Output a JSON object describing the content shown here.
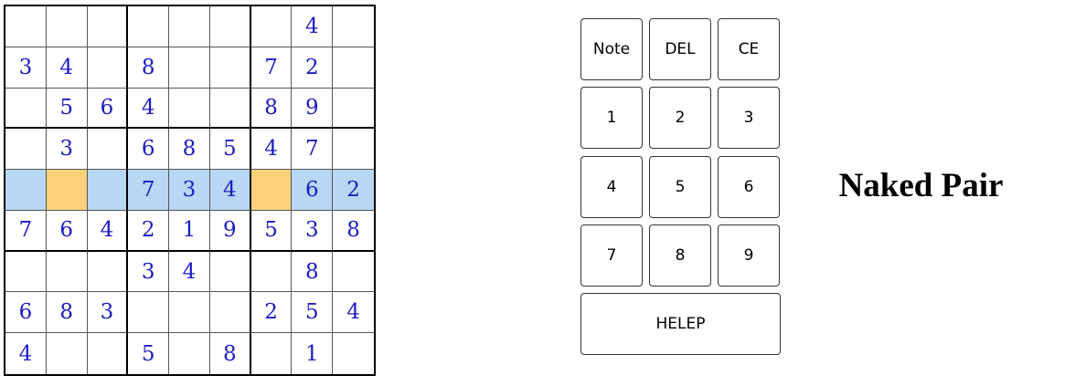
{
  "board": {
    "rows": [
      [
        "",
        "",
        "",
        "",
        "",
        "",
        "",
        "4",
        ""
      ],
      [
        "3",
        "4",
        "",
        "8",
        "",
        "",
        "7",
        "2",
        ""
      ],
      [
        "",
        "5",
        "6",
        "4",
        "",
        "",
        "8",
        "9",
        ""
      ],
      [
        "",
        "3",
        "",
        "6",
        "8",
        "5",
        "4",
        "7",
        ""
      ],
      [
        "",
        "",
        "",
        "7",
        "3",
        "4",
        "",
        "6",
        "2"
      ],
      [
        "7",
        "6",
        "4",
        "2",
        "1",
        "9",
        "5",
        "3",
        "8"
      ],
      [
        "",
        "",
        "",
        "3",
        "4",
        "",
        "",
        "8",
        ""
      ],
      [
        "6",
        "8",
        "3",
        "",
        "",
        "",
        "2",
        "5",
        "4"
      ],
      [
        "4",
        "",
        "",
        "5",
        "",
        "8",
        "",
        "1",
        ""
      ]
    ],
    "highlighted_row": 4,
    "pair_cells": [
      [
        4,
        1
      ],
      [
        4,
        6
      ]
    ],
    "colors": {
      "digit": "#1b1bc4",
      "row_highlight": "#b8d7f3",
      "pair_highlight": "#fdd27a"
    }
  },
  "keypad": {
    "note": "Note",
    "del": "DEL",
    "ce": "CE",
    "digits": [
      "1",
      "2",
      "3",
      "4",
      "5",
      "6",
      "7",
      "8",
      "9"
    ],
    "help": "HELEP"
  },
  "technique": "Naked Pair"
}
